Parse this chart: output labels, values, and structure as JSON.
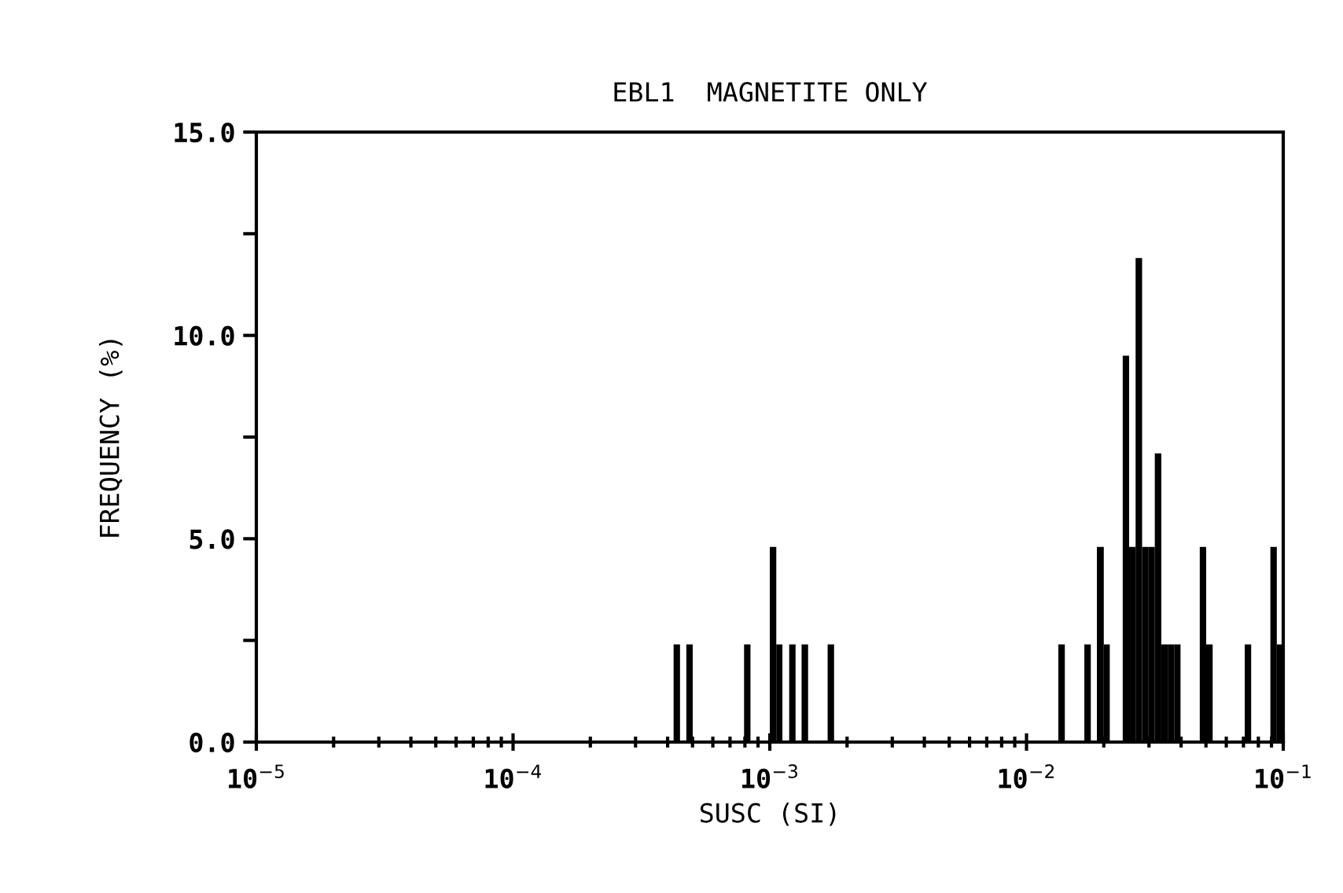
{
  "chart_data": {
    "type": "histogram",
    "title": "EBL1  MAGNETITE ONLY",
    "xlabel": "SUSC (SI)",
    "ylabel": "FREQUENCY (%)",
    "log": "x",
    "color": "#000000",
    "bins": [
      0.000422,
      0.000447,
      0.000473,
      0.000501,
      0.000794,
      0.000841,
      0.001,
      0.00106,
      0.00112,
      0.00119,
      0.00126,
      0.00133,
      0.00141,
      0.00168,
      0.00178,
      0.0133,
      0.0141,
      0.0168,
      0.0178,
      0.0188,
      0.02,
      0.0211,
      0.0237,
      0.0251,
      0.0266,
      0.0282,
      0.0299,
      0.0316,
      0.0335,
      0.0355,
      0.0376,
      0.0398,
      0.0473,
      0.0501,
      0.0531,
      0.0708,
      0.075,
      0.0891,
      0.0944,
      0.1
    ],
    "values": [
      2.4,
      0,
      2.4,
      0,
      2.4,
      0,
      4.8,
      2.4,
      0,
      2.4,
      0,
      2.4,
      0,
      2.4,
      0,
      2.4,
      0,
      2.4,
      0,
      4.8,
      2.4,
      0,
      9.5,
      4.8,
      11.9,
      4.8,
      4.8,
      7.1,
      2.4,
      2.4,
      2.4,
      0,
      4.8,
      2.4,
      0,
      2.4,
      0,
      4.8,
      2.4
    ],
    "xlim": [
      1e-05,
      0.1
    ],
    "xticks": [
      {
        "value": 1e-05,
        "label": "10$^{−5}$"
      },
      {
        "value": 0.0001,
        "label": "10$^{−4}$"
      },
      {
        "value": 0.001,
        "label": "10$^{−3}$"
      },
      {
        "value": 0.01,
        "label": "10$^{−2}$"
      },
      {
        "value": 0.1,
        "label": "10$^{−1}$"
      }
    ],
    "ylim": [
      0,
      15
    ],
    "yticks": [
      {
        "value": 0,
        "label": "0.0"
      },
      {
        "value": 2.5,
        "label": null
      },
      {
        "value": 5,
        "label": "5.0"
      },
      {
        "value": 7.5,
        "label": null
      },
      {
        "value": 10,
        "label": "10.0"
      },
      {
        "value": 12.5,
        "label": null
      },
      {
        "value": 15,
        "label": "15.0"
      }
    ],
    "grid": false
  }
}
